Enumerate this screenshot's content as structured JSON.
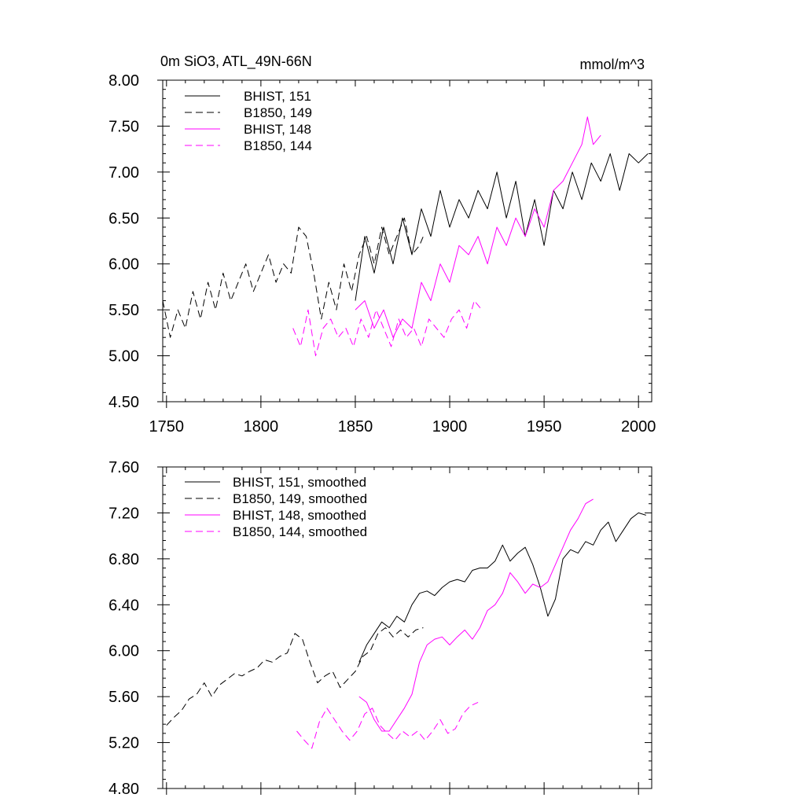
{
  "chart_data": [
    {
      "type": "line",
      "title_left": "0m SiO3, ATL_49N-66N",
      "title_right": "mmol/m^3",
      "xlim": [
        1748,
        2007
      ],
      "ylim": [
        4.5,
        8.0
      ],
      "xticks": [
        1750,
        1800,
        1850,
        1900,
        1950,
        2000
      ],
      "xtick_labels": [
        "1750",
        "1800",
        "1850",
        "1900",
        "1950",
        "2000"
      ],
      "yticks": [
        4.5,
        5.0,
        5.5,
        6.0,
        6.5,
        7.0,
        7.5,
        8.0
      ],
      "ytick_labels": [
        "4.50",
        "5.00",
        "5.50",
        "6.00",
        "6.50",
        "7.00",
        "7.50",
        "8.00"
      ],
      "legend_position": "top-left",
      "series": [
        {
          "name": "BHIST, 151",
          "color": "#000000",
          "dash": "solid",
          "x": [
            1850,
            1855,
            1860,
            1865,
            1870,
            1875,
            1880,
            1885,
            1890,
            1895,
            1900,
            1905,
            1910,
            1915,
            1920,
            1925,
            1930,
            1935,
            1940,
            1945,
            1950,
            1955,
            1960,
            1965,
            1970,
            1975,
            1980,
            1985,
            1990,
            1995,
            2000,
            2005
          ],
          "y": [
            5.6,
            6.3,
            5.9,
            6.4,
            6.0,
            6.5,
            6.1,
            6.6,
            6.3,
            6.8,
            6.4,
            6.7,
            6.5,
            6.8,
            6.6,
            7.0,
            6.5,
            6.9,
            6.3,
            6.7,
            6.2,
            6.8,
            6.6,
            7.0,
            6.7,
            7.1,
            6.9,
            7.2,
            6.8,
            7.2,
            7.1,
            7.2
          ]
        },
        {
          "name": "B1850, 149",
          "color": "#000000",
          "dash": "dashed",
          "x": [
            1748,
            1752,
            1756,
            1760,
            1764,
            1768,
            1772,
            1776,
            1780,
            1784,
            1788,
            1792,
            1796,
            1800,
            1804,
            1808,
            1812,
            1816,
            1820,
            1824,
            1828,
            1832,
            1836,
            1840,
            1844,
            1848,
            1852,
            1856,
            1860,
            1864,
            1868,
            1872,
            1876,
            1880,
            1884,
            1886
          ],
          "y": [
            5.6,
            5.2,
            5.5,
            5.3,
            5.7,
            5.4,
            5.8,
            5.5,
            5.9,
            5.6,
            5.8,
            6.0,
            5.7,
            5.9,
            6.1,
            5.8,
            6.0,
            5.9,
            6.4,
            6.3,
            5.9,
            5.4,
            5.8,
            5.5,
            6.0,
            5.7,
            6.1,
            6.3,
            6.0,
            6.4,
            6.1,
            6.3,
            6.5,
            6.1,
            6.2,
            6.3
          ]
        },
        {
          "name": "BHIST, 148",
          "color": "#ff00ff",
          "dash": "solid",
          "x": [
            1850,
            1855,
            1860,
            1865,
            1870,
            1875,
            1880,
            1885,
            1890,
            1895,
            1900,
            1905,
            1910,
            1915,
            1920,
            1925,
            1930,
            1935,
            1940,
            1945,
            1950,
            1955,
            1960,
            1965,
            1970,
            1973,
            1976,
            1980
          ],
          "y": [
            5.5,
            5.6,
            5.3,
            5.5,
            5.2,
            5.4,
            5.3,
            5.8,
            5.6,
            6.0,
            5.8,
            6.2,
            6.1,
            6.3,
            6.0,
            6.4,
            6.2,
            6.5,
            6.3,
            6.6,
            6.4,
            6.8,
            6.9,
            7.1,
            7.3,
            7.6,
            7.3,
            7.4
          ]
        },
        {
          "name": "B1850, 144",
          "color": "#ff00ff",
          "dash": "dashed",
          "x": [
            1817,
            1821,
            1825,
            1829,
            1833,
            1837,
            1841,
            1845,
            1849,
            1853,
            1857,
            1861,
            1865,
            1869,
            1873,
            1877,
            1881,
            1885,
            1889,
            1893,
            1897,
            1901,
            1905,
            1909,
            1913,
            1917
          ],
          "y": [
            5.3,
            5.1,
            5.5,
            5.0,
            5.3,
            5.4,
            5.2,
            5.3,
            5.1,
            5.4,
            5.2,
            5.5,
            5.3,
            5.1,
            5.4,
            5.2,
            5.3,
            5.1,
            5.4,
            5.3,
            5.2,
            5.4,
            5.5,
            5.3,
            5.6,
            5.5
          ]
        }
      ]
    },
    {
      "type": "line",
      "xlim": [
        1748,
        2007
      ],
      "ylim": [
        4.8,
        7.6
      ],
      "xticks": [
        1750,
        1800,
        1850,
        1900,
        1950,
        2000
      ],
      "yticks": [
        4.8,
        5.2,
        5.6,
        6.0,
        6.4,
        6.8,
        7.2,
        7.6
      ],
      "ytick_labels": [
        "4.80",
        "5.20",
        "5.60",
        "6.00",
        "6.40",
        "6.80",
        "7.20",
        "7.60"
      ],
      "legend_position": "top-left",
      "series": [
        {
          "name": "BHIST, 151, smoothed",
          "color": "#000000",
          "dash": "solid",
          "x": [
            1852,
            1856,
            1860,
            1864,
            1868,
            1872,
            1876,
            1880,
            1884,
            1888,
            1892,
            1896,
            1900,
            1904,
            1908,
            1912,
            1916,
            1920,
            1924,
            1928,
            1932,
            1936,
            1940,
            1944,
            1948,
            1952,
            1956,
            1960,
            1964,
            1968,
            1972,
            1976,
            1980,
            1984,
            1988,
            1992,
            1996,
            2000,
            2004
          ],
          "y": [
            5.9,
            6.05,
            6.15,
            6.25,
            6.2,
            6.3,
            6.25,
            6.4,
            6.5,
            6.52,
            6.48,
            6.55,
            6.6,
            6.62,
            6.6,
            6.7,
            6.72,
            6.72,
            6.78,
            6.92,
            6.78,
            6.85,
            6.9,
            6.75,
            6.55,
            6.3,
            6.45,
            6.8,
            6.88,
            6.85,
            6.95,
            6.92,
            7.05,
            7.12,
            6.95,
            7.05,
            7.15,
            7.2,
            7.18
          ]
        },
        {
          "name": "B1850, 149, smoothed",
          "color": "#000000",
          "dash": "dashed",
          "x": [
            1750,
            1754,
            1758,
            1762,
            1766,
            1770,
            1774,
            1778,
            1782,
            1786,
            1790,
            1794,
            1798,
            1802,
            1806,
            1810,
            1814,
            1818,
            1822,
            1826,
            1830,
            1834,
            1838,
            1842,
            1846,
            1850,
            1854,
            1858,
            1862,
            1866,
            1870,
            1874,
            1878,
            1882,
            1886
          ],
          "y": [
            5.35,
            5.42,
            5.48,
            5.58,
            5.62,
            5.72,
            5.6,
            5.7,
            5.75,
            5.8,
            5.78,
            5.82,
            5.85,
            5.92,
            5.9,
            5.95,
            5.98,
            6.15,
            6.1,
            5.9,
            5.72,
            5.78,
            5.82,
            5.68,
            5.75,
            5.82,
            5.95,
            6.0,
            6.15,
            6.2,
            6.12,
            6.18,
            6.12,
            6.18,
            6.2
          ]
        },
        {
          "name": "BHIST, 148, smoothed",
          "color": "#ff00ff",
          "dash": "solid",
          "x": [
            1852,
            1856,
            1860,
            1864,
            1868,
            1872,
            1876,
            1880,
            1884,
            1888,
            1892,
            1896,
            1900,
            1904,
            1908,
            1912,
            1916,
            1920,
            1924,
            1928,
            1932,
            1936,
            1940,
            1944,
            1948,
            1952,
            1956,
            1960,
            1964,
            1968,
            1972,
            1976
          ],
          "y": [
            5.6,
            5.55,
            5.4,
            5.3,
            5.3,
            5.4,
            5.5,
            5.62,
            5.9,
            6.05,
            6.1,
            6.12,
            6.05,
            6.12,
            6.18,
            6.1,
            6.2,
            6.35,
            6.4,
            6.5,
            6.68,
            6.6,
            6.5,
            6.58,
            6.55,
            6.6,
            6.75,
            6.9,
            7.05,
            7.15,
            7.28,
            7.32
          ]
        },
        {
          "name": "B1850, 144, smoothed",
          "color": "#ff00ff",
          "dash": "dashed",
          "x": [
            1819,
            1823,
            1827,
            1831,
            1835,
            1839,
            1843,
            1847,
            1851,
            1855,
            1859,
            1863,
            1867,
            1871,
            1875,
            1879,
            1883,
            1887,
            1891,
            1895,
            1899,
            1903,
            1907,
            1911,
            1915
          ],
          "y": [
            5.3,
            5.22,
            5.15,
            5.38,
            5.5,
            5.4,
            5.3,
            5.22,
            5.3,
            5.45,
            5.5,
            5.35,
            5.28,
            5.22,
            5.3,
            5.25,
            5.3,
            5.22,
            5.3,
            5.4,
            5.28,
            5.32,
            5.45,
            5.52,
            5.55
          ]
        }
      ]
    }
  ]
}
